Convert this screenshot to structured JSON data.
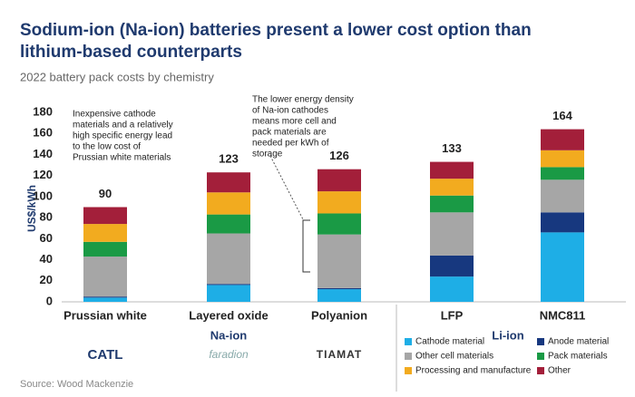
{
  "chart_data": {
    "type": "bar",
    "stacked": true,
    "title": [
      "Sodium-ion (Na-ion) batteries present a lower cost option than",
      "lithium-based counterparts"
    ],
    "subtitle": "2022 battery pack costs by chemistry",
    "y_label": "US$/kWh",
    "categories": [
      "Prussian white",
      "Layered oxide",
      "Polyanion",
      "LFP",
      "NMC811"
    ],
    "totals": [
      90,
      123,
      126,
      133,
      164
    ],
    "groups": [
      {
        "name": "Na-ion",
        "size": 3
      },
      {
        "name": "Li-ion",
        "size": 2
      }
    ],
    "logos": [
      "CATL",
      "faradion",
      "TIAMAT"
    ],
    "series": [
      {
        "name": "Cathode material",
        "color": "#1eaee6",
        "values": [
          4,
          16,
          12,
          24,
          66
        ]
      },
      {
        "name": "Anode material",
        "color": "#17387f",
        "values": [
          1,
          1,
          1,
          20,
          19
        ]
      },
      {
        "name": "Other cell materials",
        "color": "#a6a6a6",
        "values": [
          38,
          48,
          51,
          41,
          31
        ]
      },
      {
        "name": "Pack materials",
        "color": "#1a9a45",
        "values": [
          14,
          18,
          20,
          16,
          12
        ]
      },
      {
        "name": "Processing and manufacture",
        "color": "#f2ab1f",
        "values": [
          17,
          21,
          21,
          16,
          16
        ]
      },
      {
        "name": "Other",
        "color": "#a31f3a",
        "values": [
          16,
          19,
          21,
          16,
          20
        ]
      }
    ],
    "ylim": [
      0,
      180
    ],
    "yticks": [
      0,
      20,
      40,
      60,
      80,
      100,
      120,
      140,
      160,
      180
    ],
    "annotations": [
      [
        "Inexpensive cathode",
        "materials and a relatively",
        "high specific energy lead",
        "to the low cost of",
        "Prussian white materials"
      ],
      [
        "The lower energy density",
        "of Na-ion cathodes",
        "means more cell and",
        "pack materials are",
        "needed per kWh of",
        "storage"
      ]
    ],
    "source": "Source: Wood Mackenzie"
  }
}
